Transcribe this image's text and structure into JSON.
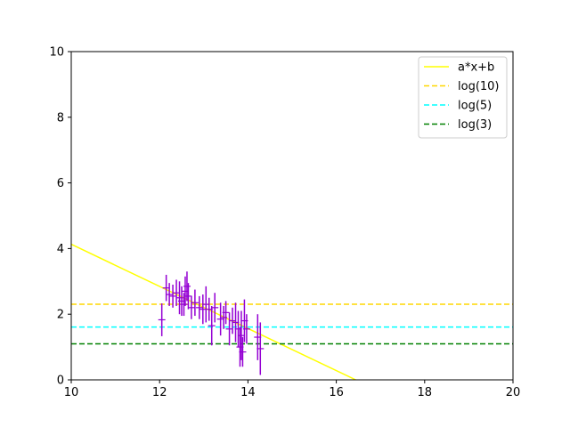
{
  "chart_data": {
    "type": "scatter",
    "title": "",
    "xlabel": "",
    "ylabel": "",
    "xlim": [
      10,
      20
    ],
    "ylim": [
      0,
      10
    ],
    "grid": false,
    "legend_position": "top-right",
    "x_ticks": [
      "10",
      "12",
      "14",
      "16",
      "18",
      "20"
    ],
    "y_ticks": [
      "0",
      "2",
      "4",
      "6",
      "8",
      "10"
    ],
    "series": [
      {
        "name": "a*x+b",
        "kind": "line",
        "style": "solid",
        "color": "#ffff00",
        "x": [
          10,
          16.44
        ],
        "y": [
          4.13,
          0
        ]
      },
      {
        "name": "log(10)",
        "kind": "hline",
        "style": "dashed",
        "color": "#ffd700",
        "y": 2.303
      },
      {
        "name": "log(5)",
        "kind": "hline",
        "style": "dashed",
        "color": "#00ffff",
        "y": 1.609
      },
      {
        "name": "log(3)",
        "kind": "hline",
        "style": "dashed",
        "color": "#008000",
        "y": 1.099
      }
    ],
    "errorbar_points": {
      "color": "#9400d3",
      "points": [
        {
          "x": 12.05,
          "y": 1.83,
          "err": 0.5
        },
        {
          "x": 12.15,
          "y": 2.8,
          "err": 0.4
        },
        {
          "x": 12.22,
          "y": 2.6,
          "err": 0.35
        },
        {
          "x": 12.3,
          "y": 2.55,
          "err": 0.35
        },
        {
          "x": 12.38,
          "y": 2.65,
          "err": 0.4
        },
        {
          "x": 12.45,
          "y": 2.5,
          "err": 0.5
        },
        {
          "x": 12.5,
          "y": 2.4,
          "err": 0.45
        },
        {
          "x": 12.55,
          "y": 2.3,
          "err": 0.35
        },
        {
          "x": 12.58,
          "y": 2.7,
          "err": 0.45
        },
        {
          "x": 12.62,
          "y": 2.85,
          "err": 0.45
        },
        {
          "x": 12.65,
          "y": 2.55,
          "err": 0.4
        },
        {
          "x": 12.72,
          "y": 2.2,
          "err": 0.35
        },
        {
          "x": 12.8,
          "y": 2.35,
          "err": 0.4
        },
        {
          "x": 12.9,
          "y": 2.2,
          "err": 0.35
        },
        {
          "x": 12.98,
          "y": 2.15,
          "err": 0.45
        },
        {
          "x": 13.05,
          "y": 2.3,
          "err": 0.55
        },
        {
          "x": 13.12,
          "y": 2.15,
          "err": 0.35
        },
        {
          "x": 13.18,
          "y": 1.65,
          "err": 0.6
        },
        {
          "x": 13.25,
          "y": 2.2,
          "err": 0.45
        },
        {
          "x": 13.38,
          "y": 1.85,
          "err": 0.5
        },
        {
          "x": 13.45,
          "y": 1.9,
          "err": 0.35
        },
        {
          "x": 13.5,
          "y": 2.05,
          "err": 0.35
        },
        {
          "x": 13.58,
          "y": 1.55,
          "err": 0.5
        },
        {
          "x": 13.65,
          "y": 1.8,
          "err": 0.4
        },
        {
          "x": 13.72,
          "y": 1.75,
          "err": 0.6
        },
        {
          "x": 13.78,
          "y": 1.55,
          "err": 0.55
        },
        {
          "x": 13.82,
          "y": 1.0,
          "err": 0.6
        },
        {
          "x": 13.85,
          "y": 1.35,
          "err": 0.75
        },
        {
          "x": 13.88,
          "y": 0.85,
          "err": 0.45
        },
        {
          "x": 13.92,
          "y": 1.8,
          "err": 0.65
        },
        {
          "x": 13.97,
          "y": 1.55,
          "err": 0.45
        },
        {
          "x": 14.22,
          "y": 1.3,
          "err": 0.7
        },
        {
          "x": 14.28,
          "y": 0.95,
          "err": 0.8
        }
      ]
    }
  }
}
